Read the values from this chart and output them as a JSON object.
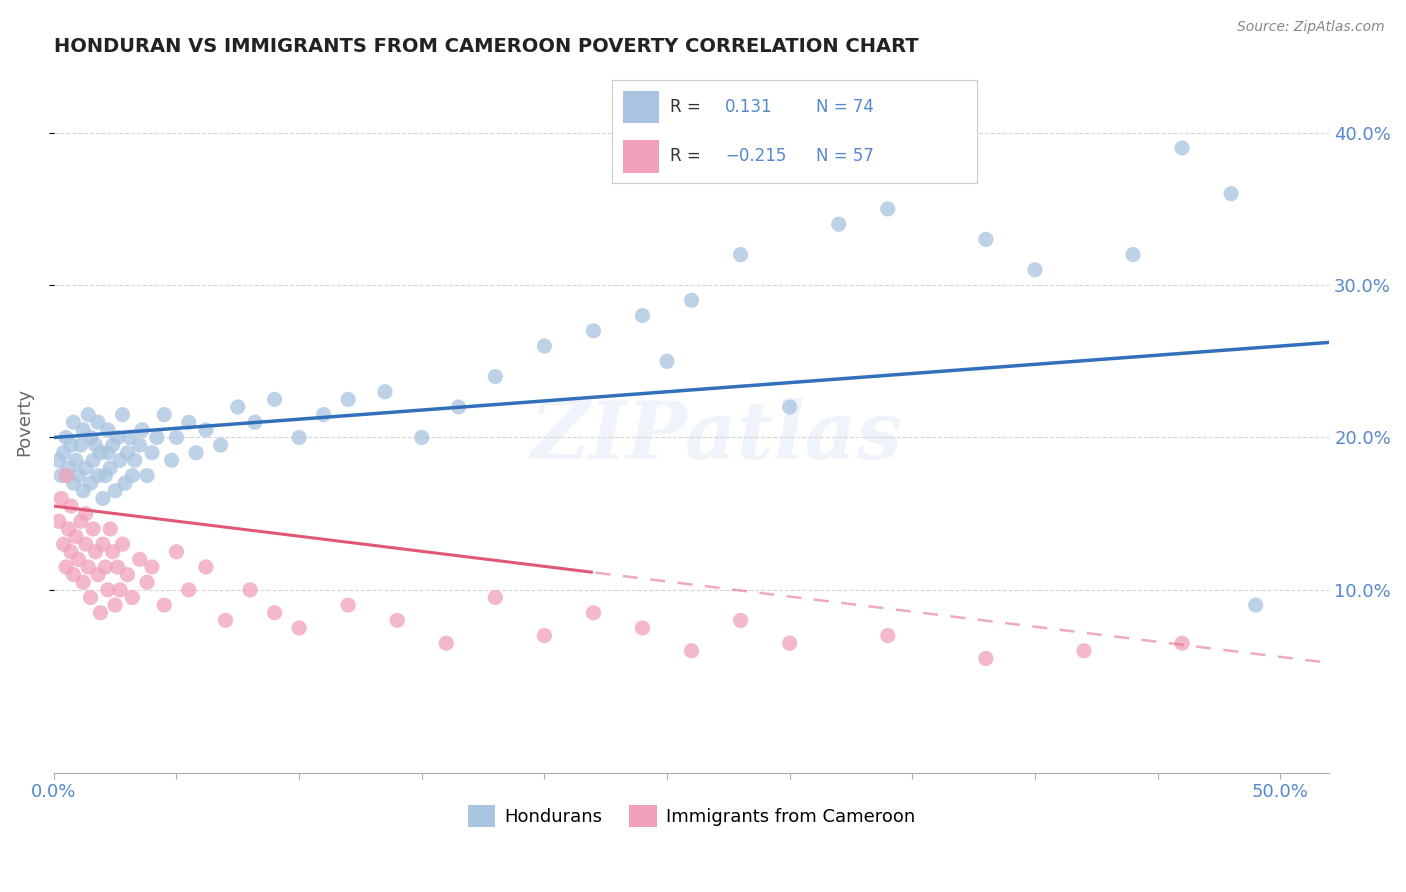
{
  "title": "HONDURAN VS IMMIGRANTS FROM CAMEROON POVERTY CORRELATION CHART",
  "source": "Source: ZipAtlas.com",
  "ylabel": "Poverty",
  "xlim": [
    0.0,
    0.52
  ],
  "ylim": [
    -0.02,
    0.44
  ],
  "r_honduran": 0.131,
  "n_honduran": 74,
  "r_cameroon": -0.215,
  "n_cameroon": 57,
  "honduran_color": "#a8c4e0",
  "cameroon_color": "#f0a0b8",
  "trend_honduran_color": "#3370bb",
  "trend_cameroon_color": "#e05878",
  "watermark": "ZIPatlas",
  "background_color": "#ffffff",
  "grid_color": "#cccccc",
  "hon_x": [
    0.002,
    0.003,
    0.004,
    0.005,
    0.006,
    0.007,
    0.008,
    0.008,
    0.009,
    0.01,
    0.011,
    0.012,
    0.012,
    0.013,
    0.014,
    0.015,
    0.015,
    0.016,
    0.017,
    0.018,
    0.018,
    0.019,
    0.02,
    0.021,
    0.022,
    0.022,
    0.023,
    0.024,
    0.025,
    0.026,
    0.027,
    0.028,
    0.029,
    0.03,
    0.031,
    0.032,
    0.033,
    0.035,
    0.036,
    0.038,
    0.04,
    0.042,
    0.045,
    0.048,
    0.05,
    0.055,
    0.058,
    0.062,
    0.068,
    0.075,
    0.082,
    0.09,
    0.1,
    0.11,
    0.12,
    0.135,
    0.15,
    0.165,
    0.18,
    0.2,
    0.22,
    0.24,
    0.26,
    0.28,
    0.32,
    0.34,
    0.38,
    0.4,
    0.44,
    0.46,
    0.48,
    0.49,
    0.25,
    0.3
  ],
  "hon_y": [
    0.185,
    0.175,
    0.19,
    0.2,
    0.18,
    0.195,
    0.17,
    0.21,
    0.185,
    0.175,
    0.195,
    0.205,
    0.165,
    0.18,
    0.215,
    0.17,
    0.2,
    0.185,
    0.195,
    0.175,
    0.21,
    0.19,
    0.16,
    0.175,
    0.19,
    0.205,
    0.18,
    0.195,
    0.165,
    0.2,
    0.185,
    0.215,
    0.17,
    0.19,
    0.2,
    0.175,
    0.185,
    0.195,
    0.205,
    0.175,
    0.19,
    0.2,
    0.215,
    0.185,
    0.2,
    0.21,
    0.19,
    0.205,
    0.195,
    0.22,
    0.21,
    0.225,
    0.2,
    0.215,
    0.225,
    0.23,
    0.2,
    0.22,
    0.24,
    0.26,
    0.27,
    0.28,
    0.29,
    0.32,
    0.34,
    0.35,
    0.33,
    0.31,
    0.32,
    0.39,
    0.36,
    0.09,
    0.25,
    0.22
  ],
  "cam_x": [
    0.002,
    0.003,
    0.004,
    0.005,
    0.005,
    0.006,
    0.007,
    0.007,
    0.008,
    0.009,
    0.01,
    0.011,
    0.012,
    0.013,
    0.013,
    0.014,
    0.015,
    0.016,
    0.017,
    0.018,
    0.019,
    0.02,
    0.021,
    0.022,
    0.023,
    0.024,
    0.025,
    0.026,
    0.027,
    0.028,
    0.03,
    0.032,
    0.035,
    0.038,
    0.04,
    0.045,
    0.05,
    0.055,
    0.062,
    0.07,
    0.08,
    0.09,
    0.1,
    0.12,
    0.14,
    0.16,
    0.18,
    0.2,
    0.22,
    0.24,
    0.26,
    0.28,
    0.3,
    0.34,
    0.38,
    0.42,
    0.46
  ],
  "cam_y": [
    0.145,
    0.16,
    0.13,
    0.175,
    0.115,
    0.14,
    0.125,
    0.155,
    0.11,
    0.135,
    0.12,
    0.145,
    0.105,
    0.13,
    0.15,
    0.115,
    0.095,
    0.14,
    0.125,
    0.11,
    0.085,
    0.13,
    0.115,
    0.1,
    0.14,
    0.125,
    0.09,
    0.115,
    0.1,
    0.13,
    0.11,
    0.095,
    0.12,
    0.105,
    0.115,
    0.09,
    0.125,
    0.1,
    0.115,
    0.08,
    0.1,
    0.085,
    0.075,
    0.09,
    0.08,
    0.065,
    0.095,
    0.07,
    0.085,
    0.075,
    0.06,
    0.08,
    0.065,
    0.07,
    0.055,
    0.06,
    0.065
  ],
  "ytick_positions": [
    0.1,
    0.2,
    0.3,
    0.4
  ],
  "ytick_labels": [
    "10.0%",
    "20.0%",
    "30.0%",
    "40.0%"
  ],
  "xtick_positions": [
    0.0,
    0.05,
    0.1,
    0.15,
    0.2,
    0.25,
    0.3,
    0.35,
    0.4,
    0.45,
    0.5
  ],
  "xtick_labels_show": [
    "0.0%",
    "",
    "",
    "",
    "",
    "",
    "",
    "",
    "",
    "",
    "50.0%"
  ]
}
